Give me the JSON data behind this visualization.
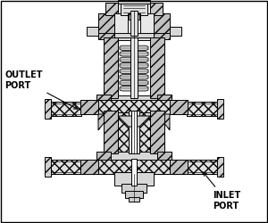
{
  "background_color": "#ffffff",
  "line_color": "#000000",
  "outlet_label": "OUTLET\nPORT",
  "inlet_label": "INLET\nPORT",
  "label_fontsize": 7,
  "lw": 0.7
}
